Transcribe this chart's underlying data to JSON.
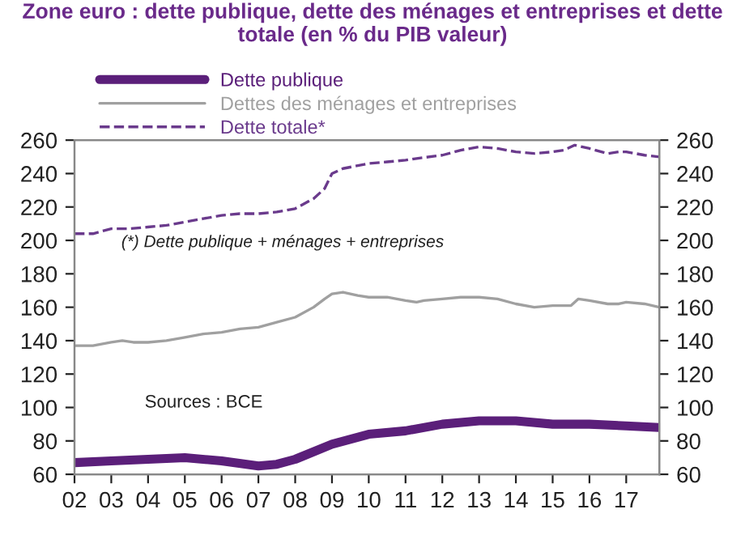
{
  "chart_data": {
    "type": "line",
    "title": "Zone euro : dette publique, dette des ménages et entreprises et dette totale (en % du PIB valeur)",
    "series": [
      {
        "name": "Dette publique",
        "color": "#5b1f7a",
        "line_style": "solid",
        "x": [
          2002,
          2003,
          2004,
          2005,
          2006,
          2007,
          2007.5,
          2008,
          2009,
          2010,
          2011,
          2012,
          2013,
          2014,
          2015,
          2016,
          2017,
          2017.9
        ],
        "values": [
          67,
          68,
          69,
          70,
          68,
          65,
          66,
          69,
          78,
          84,
          86,
          90,
          92,
          92,
          90,
          90,
          89,
          88
        ]
      },
      {
        "name": "Dettes des ménages et entreprises",
        "color": "#a0a0a0",
        "line_style": "solid",
        "x": [
          2002,
          2002.5,
          2003,
          2003.3,
          2003.6,
          2004,
          2004.5,
          2005,
          2005.5,
          2006,
          2006.5,
          2007,
          2007.5,
          2008,
          2008.5,
          2008.8,
          2009,
          2009.3,
          2009.7,
          2010,
          2010.5,
          2011,
          2011.3,
          2011.5,
          2012,
          2012.5,
          2013,
          2013.5,
          2014,
          2014.5,
          2015,
          2015.5,
          2015.7,
          2016,
          2016.5,
          2016.8,
          2017,
          2017.5,
          2017.9
        ],
        "values": [
          137,
          137,
          139,
          140,
          139,
          139,
          140,
          142,
          144,
          145,
          147,
          148,
          151,
          154,
          160,
          165,
          168,
          169,
          167,
          166,
          166,
          164,
          163,
          164,
          165,
          166,
          166,
          165,
          162,
          160,
          161,
          161,
          165,
          164,
          162,
          162,
          163,
          162,
          160
        ]
      },
      {
        "name": "Dette totale*",
        "color": "#6a3a8c",
        "line_style": "dashed",
        "x": [
          2002,
          2002.5,
          2003,
          2003.5,
          2004,
          2004.5,
          2005,
          2005.5,
          2006,
          2006.5,
          2007,
          2007.5,
          2008,
          2008.5,
          2008.8,
          2009,
          2009.3,
          2010,
          2010.5,
          2011,
          2011.3,
          2012,
          2012.5,
          2013,
          2013.5,
          2014,
          2014.5,
          2015,
          2015.3,
          2015.6,
          2016,
          2016.5,
          2016.8,
          2017,
          2017.5,
          2017.9
        ],
        "values": [
          204,
          204,
          207,
          207,
          208,
          209,
          211,
          213,
          215,
          216,
          216,
          217,
          219,
          225,
          231,
          240,
          243,
          246,
          247,
          248,
          249,
          251,
          254,
          256,
          255,
          253,
          252,
          253,
          254,
          257,
          255,
          252,
          253,
          253,
          251,
          250
        ]
      }
    ],
    "xlim": [
      2002,
      2017.9
    ],
    "xticks": [
      {
        "value": 2002,
        "label": "02"
      },
      {
        "value": 2003,
        "label": "03"
      },
      {
        "value": 2004,
        "label": "04"
      },
      {
        "value": 2005,
        "label": "05"
      },
      {
        "value": 2006,
        "label": "06"
      },
      {
        "value": 2007,
        "label": "07"
      },
      {
        "value": 2008,
        "label": "08"
      },
      {
        "value": 2009,
        "label": "09"
      },
      {
        "value": 2010,
        "label": "10"
      },
      {
        "value": 2011,
        "label": "11"
      },
      {
        "value": 2012,
        "label": "12"
      },
      {
        "value": 2013,
        "label": "13"
      },
      {
        "value": 2014,
        "label": "14"
      },
      {
        "value": 2015,
        "label": "15"
      },
      {
        "value": 2016,
        "label": "16"
      },
      {
        "value": 2017,
        "label": "17"
      }
    ],
    "ylim": [
      60,
      260
    ],
    "yticks": [
      60,
      80,
      100,
      120,
      140,
      160,
      180,
      200,
      220,
      240,
      260
    ],
    "y2lim": [
      60,
      260
    ],
    "y2ticks": [
      60,
      80,
      100,
      120,
      140,
      160,
      180,
      200,
      220,
      240,
      260
    ],
    "annotations": [
      "(*) Dette publique + ménages + entreprises",
      "Sources : BCE"
    ],
    "legend": "top left",
    "grid": false,
    "marker": "none"
  }
}
